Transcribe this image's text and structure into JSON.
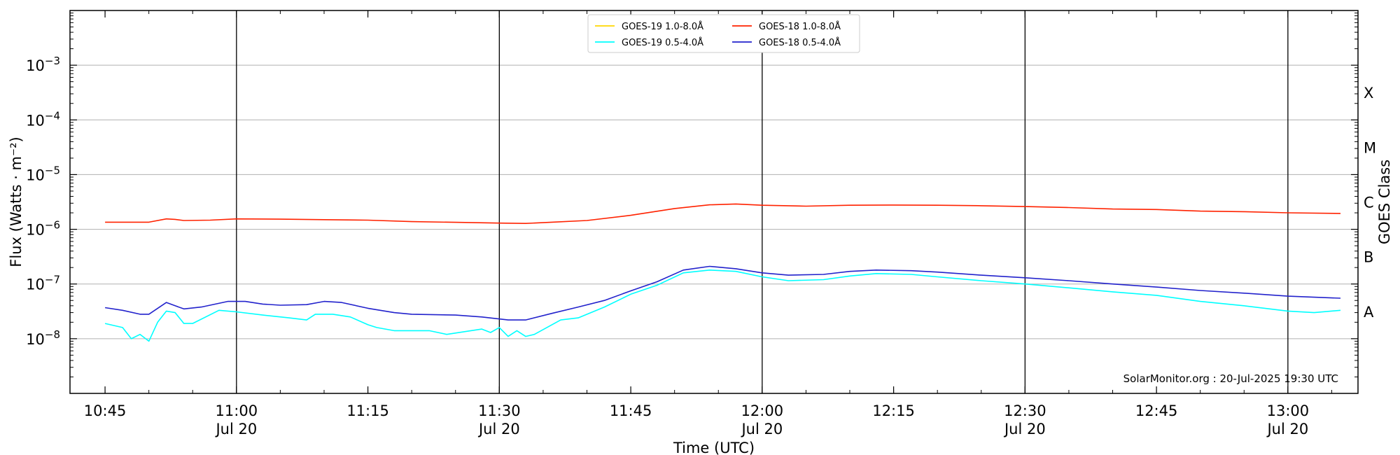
{
  "chart_data": {
    "type": "line",
    "xlabel": "Time (UTC)",
    "ylabel": "Flux (Watts · m⁻²)",
    "ylabel_right": "GOES Class",
    "yscale": "log",
    "xlim": [
      "2025-07-20T10:41",
      "2025-07-20T13:08"
    ],
    "ylim": [
      1e-09,
      0.01
    ],
    "grid": "horizontal",
    "y_ticks": [
      {
        "value": 1e-08,
        "base": "10",
        "exp": "−8"
      },
      {
        "value": 1e-07,
        "base": "10",
        "exp": "−7"
      },
      {
        "value": 1e-06,
        "base": "10",
        "exp": "−6"
      },
      {
        "value": 1e-05,
        "base": "10",
        "exp": "−5"
      },
      {
        "value": 0.0001,
        "base": "10",
        "exp": "−4"
      },
      {
        "value": 0.001,
        "base": "10",
        "exp": "−3"
      }
    ],
    "x_ticks": [
      {
        "time": "2025-07-20T10:45",
        "label": "10:45",
        "sub": "",
        "vline": false
      },
      {
        "time": "2025-07-20T11:00",
        "label": "11:00",
        "sub": "Jul 20",
        "vline": true
      },
      {
        "time": "2025-07-20T11:15",
        "label": "11:15",
        "sub": "",
        "vline": false
      },
      {
        "time": "2025-07-20T11:30",
        "label": "11:30",
        "sub": "Jul 20",
        "vline": true
      },
      {
        "time": "2025-07-20T11:45",
        "label": "11:45",
        "sub": "",
        "vline": false
      },
      {
        "time": "2025-07-20T12:00",
        "label": "12:00",
        "sub": "Jul 20",
        "vline": true
      },
      {
        "time": "2025-07-20T12:15",
        "label": "12:15",
        "sub": "",
        "vline": false
      },
      {
        "time": "2025-07-20T12:30",
        "label": "12:30",
        "sub": "Jul 20",
        "vline": true
      },
      {
        "time": "2025-07-20T12:45",
        "label": "12:45",
        "sub": "",
        "vline": false
      },
      {
        "time": "2025-07-20T13:00",
        "label": "13:00",
        "sub": "Jul 20",
        "vline": true
      }
    ],
    "goes_classes": [
      {
        "label": "A",
        "value": 3.16e-08
      },
      {
        "label": "B",
        "value": 3.16e-07
      },
      {
        "label": "C",
        "value": 3.16e-06
      },
      {
        "label": "M",
        "value": 3.16e-05
      },
      {
        "label": "X",
        "value": 0.000316
      }
    ],
    "legend_position": "top-center",
    "legend": [
      {
        "name": "GOES-19 1.0-8.0Å",
        "color": "#ffd700"
      },
      {
        "name": "GOES-19 0.5-4.0Å",
        "color": "#00ffff"
      },
      {
        "name": "GOES-18 1.0-8.0Å",
        "color": "#ff2200"
      },
      {
        "name": "GOES-18 0.5-4.0Å",
        "color": "#2222cc"
      }
    ],
    "series": [
      {
        "name": "GOES-18 1.0-8.0Å",
        "color": "#ff2200",
        "points": [
          [
            "2025-07-20T10:45",
            1.35e-06
          ],
          [
            "2025-07-20T10:50",
            1.35e-06
          ],
          [
            "2025-07-20T10:52",
            1.55e-06
          ],
          [
            "2025-07-20T10:53",
            1.52e-06
          ],
          [
            "2025-07-20T10:54",
            1.45e-06
          ],
          [
            "2025-07-20T10:57",
            1.47e-06
          ],
          [
            "2025-07-20T11:00",
            1.55e-06
          ],
          [
            "2025-07-20T11:05",
            1.53e-06
          ],
          [
            "2025-07-20T11:10",
            1.5e-06
          ],
          [
            "2025-07-20T11:15",
            1.47e-06
          ],
          [
            "2025-07-20T11:20",
            1.38e-06
          ],
          [
            "2025-07-20T11:25",
            1.34e-06
          ],
          [
            "2025-07-20T11:30",
            1.3e-06
          ],
          [
            "2025-07-20T11:33",
            1.28e-06
          ],
          [
            "2025-07-20T11:36",
            1.35e-06
          ],
          [
            "2025-07-20T11:40",
            1.45e-06
          ],
          [
            "2025-07-20T11:45",
            1.8e-06
          ],
          [
            "2025-07-20T11:50",
            2.4e-06
          ],
          [
            "2025-07-20T11:54",
            2.8e-06
          ],
          [
            "2025-07-20T11:57",
            2.9e-06
          ],
          [
            "2025-07-20T12:00",
            2.75e-06
          ],
          [
            "2025-07-20T12:05",
            2.65e-06
          ],
          [
            "2025-07-20T12:10",
            2.75e-06
          ],
          [
            "2025-07-20T12:15",
            2.78e-06
          ],
          [
            "2025-07-20T12:20",
            2.75e-06
          ],
          [
            "2025-07-20T12:25",
            2.7e-06
          ],
          [
            "2025-07-20T12:30",
            2.6e-06
          ],
          [
            "2025-07-20T12:35",
            2.5e-06
          ],
          [
            "2025-07-20T12:40",
            2.35e-06
          ],
          [
            "2025-07-20T12:45",
            2.3e-06
          ],
          [
            "2025-07-20T12:50",
            2.15e-06
          ],
          [
            "2025-07-20T12:55",
            2.1e-06
          ],
          [
            "2025-07-20T13:00",
            2e-06
          ],
          [
            "2025-07-20T13:06",
            1.95e-06
          ]
        ]
      },
      {
        "name": "GOES-18 0.5-4.0Å",
        "color": "#2222cc",
        "points": [
          [
            "2025-07-20T10:45",
            3.7e-08
          ],
          [
            "2025-07-20T10:47",
            3.3e-08
          ],
          [
            "2025-07-20T10:49",
            2.8e-08
          ],
          [
            "2025-07-20T10:50",
            2.8e-08
          ],
          [
            "2025-07-20T10:52",
            4.6e-08
          ],
          [
            "2025-07-20T10:53",
            4e-08
          ],
          [
            "2025-07-20T10:54",
            3.5e-08
          ],
          [
            "2025-07-20T10:56",
            3.8e-08
          ],
          [
            "2025-07-20T10:59",
            4.8e-08
          ],
          [
            "2025-07-20T11:01",
            4.8e-08
          ],
          [
            "2025-07-20T11:03",
            4.3e-08
          ],
          [
            "2025-07-20T11:05",
            4.1e-08
          ],
          [
            "2025-07-20T11:08",
            4.2e-08
          ],
          [
            "2025-07-20T11:10",
            4.8e-08
          ],
          [
            "2025-07-20T11:12",
            4.6e-08
          ],
          [
            "2025-07-20T11:15",
            3.6e-08
          ],
          [
            "2025-07-20T11:18",
            3e-08
          ],
          [
            "2025-07-20T11:20",
            2.8e-08
          ],
          [
            "2025-07-20T11:25",
            2.7e-08
          ],
          [
            "2025-07-20T11:28",
            2.5e-08
          ],
          [
            "2025-07-20T11:31",
            2.2e-08
          ],
          [
            "2025-07-20T11:33",
            2.2e-08
          ],
          [
            "2025-07-20T11:36",
            2.9e-08
          ],
          [
            "2025-07-20T11:39",
            3.8e-08
          ],
          [
            "2025-07-20T11:42",
            5e-08
          ],
          [
            "2025-07-20T11:45",
            7.5e-08
          ],
          [
            "2025-07-20T11:48",
            1.1e-07
          ],
          [
            "2025-07-20T11:51",
            1.8e-07
          ],
          [
            "2025-07-20T11:54",
            2.1e-07
          ],
          [
            "2025-07-20T11:57",
            1.9e-07
          ],
          [
            "2025-07-20T12:00",
            1.6e-07
          ],
          [
            "2025-07-20T12:03",
            1.45e-07
          ],
          [
            "2025-07-20T12:07",
            1.5e-07
          ],
          [
            "2025-07-20T12:10",
            1.7e-07
          ],
          [
            "2025-07-20T12:13",
            1.8e-07
          ],
          [
            "2025-07-20T12:17",
            1.75e-07
          ],
          [
            "2025-07-20T12:20",
            1.65e-07
          ],
          [
            "2025-07-20T12:25",
            1.45e-07
          ],
          [
            "2025-07-20T12:30",
            1.3e-07
          ],
          [
            "2025-07-20T12:35",
            1.15e-07
          ],
          [
            "2025-07-20T12:40",
            1e-07
          ],
          [
            "2025-07-20T12:45",
            8.8e-08
          ],
          [
            "2025-07-20T12:50",
            7.6e-08
          ],
          [
            "2025-07-20T12:55",
            6.8e-08
          ],
          [
            "2025-07-20T13:00",
            6e-08
          ],
          [
            "2025-07-20T13:06",
            5.5e-08
          ]
        ]
      },
      {
        "name": "GOES-19 0.5-4.0Å",
        "color": "#00ffff",
        "points": [
          [
            "2025-07-20T10:45",
            1.9e-08
          ],
          [
            "2025-07-20T10:47",
            1.6e-08
          ],
          [
            "2025-07-20T10:48",
            1e-08
          ],
          [
            "2025-07-20T10:49",
            1.2e-08
          ],
          [
            "2025-07-20T10:50",
            9e-09
          ],
          [
            "2025-07-20T10:51",
            2e-08
          ],
          [
            "2025-07-20T10:52",
            3.2e-08
          ],
          [
            "2025-07-20T10:53",
            3e-08
          ],
          [
            "2025-07-20T10:54",
            1.9e-08
          ],
          [
            "2025-07-20T10:55",
            1.9e-08
          ],
          [
            "2025-07-20T10:58",
            3.3e-08
          ],
          [
            "2025-07-20T11:00",
            3.1e-08
          ],
          [
            "2025-07-20T11:03",
            2.7e-08
          ],
          [
            "2025-07-20T11:06",
            2.4e-08
          ],
          [
            "2025-07-20T11:08",
            2.2e-08
          ],
          [
            "2025-07-20T11:09",
            2.8e-08
          ],
          [
            "2025-07-20T11:11",
            2.8e-08
          ],
          [
            "2025-07-20T11:13",
            2.5e-08
          ],
          [
            "2025-07-20T11:15",
            1.8e-08
          ],
          [
            "2025-07-20T11:16",
            1.6e-08
          ],
          [
            "2025-07-20T11:18",
            1.4e-08
          ],
          [
            "2025-07-20T11:22",
            1.4e-08
          ],
          [
            "2025-07-20T11:24",
            1.2e-08
          ],
          [
            "2025-07-20T11:28",
            1.5e-08
          ],
          [
            "2025-07-20T11:29",
            1.3e-08
          ],
          [
            "2025-07-20T11:30",
            1.6e-08
          ],
          [
            "2025-07-20T11:31",
            1.1e-08
          ],
          [
            "2025-07-20T11:32",
            1.4e-08
          ],
          [
            "2025-07-20T11:33",
            1.1e-08
          ],
          [
            "2025-07-20T11:34",
            1.2e-08
          ],
          [
            "2025-07-20T11:37",
            2.2e-08
          ],
          [
            "2025-07-20T11:39",
            2.4e-08
          ],
          [
            "2025-07-20T11:42",
            3.8e-08
          ],
          [
            "2025-07-20T11:45",
            6.5e-08
          ],
          [
            "2025-07-20T11:48",
            9.5e-08
          ],
          [
            "2025-07-20T11:51",
            1.6e-07
          ],
          [
            "2025-07-20T11:54",
            1.8e-07
          ],
          [
            "2025-07-20T11:57",
            1.7e-07
          ],
          [
            "2025-07-20T12:00",
            1.35e-07
          ],
          [
            "2025-07-20T12:03",
            1.15e-07
          ],
          [
            "2025-07-20T12:07",
            1.2e-07
          ],
          [
            "2025-07-20T12:10",
            1.4e-07
          ],
          [
            "2025-07-20T12:13",
            1.55e-07
          ],
          [
            "2025-07-20T12:17",
            1.5e-07
          ],
          [
            "2025-07-20T12:20",
            1.35e-07
          ],
          [
            "2025-07-20T12:25",
            1.15e-07
          ],
          [
            "2025-07-20T12:30",
            1e-07
          ],
          [
            "2025-07-20T12:35",
            8.5e-08
          ],
          [
            "2025-07-20T12:40",
            7.2e-08
          ],
          [
            "2025-07-20T12:45",
            6.2e-08
          ],
          [
            "2025-07-20T12:50",
            4.8e-08
          ],
          [
            "2025-07-20T12:55",
            4e-08
          ],
          [
            "2025-07-20T13:00",
            3.2e-08
          ],
          [
            "2025-07-20T13:03",
            3e-08
          ],
          [
            "2025-07-20T13:06",
            3.3e-08
          ]
        ]
      }
    ]
  },
  "credit": "SolarMonitor.org : 20-Jul-2025 19:30 UTC"
}
